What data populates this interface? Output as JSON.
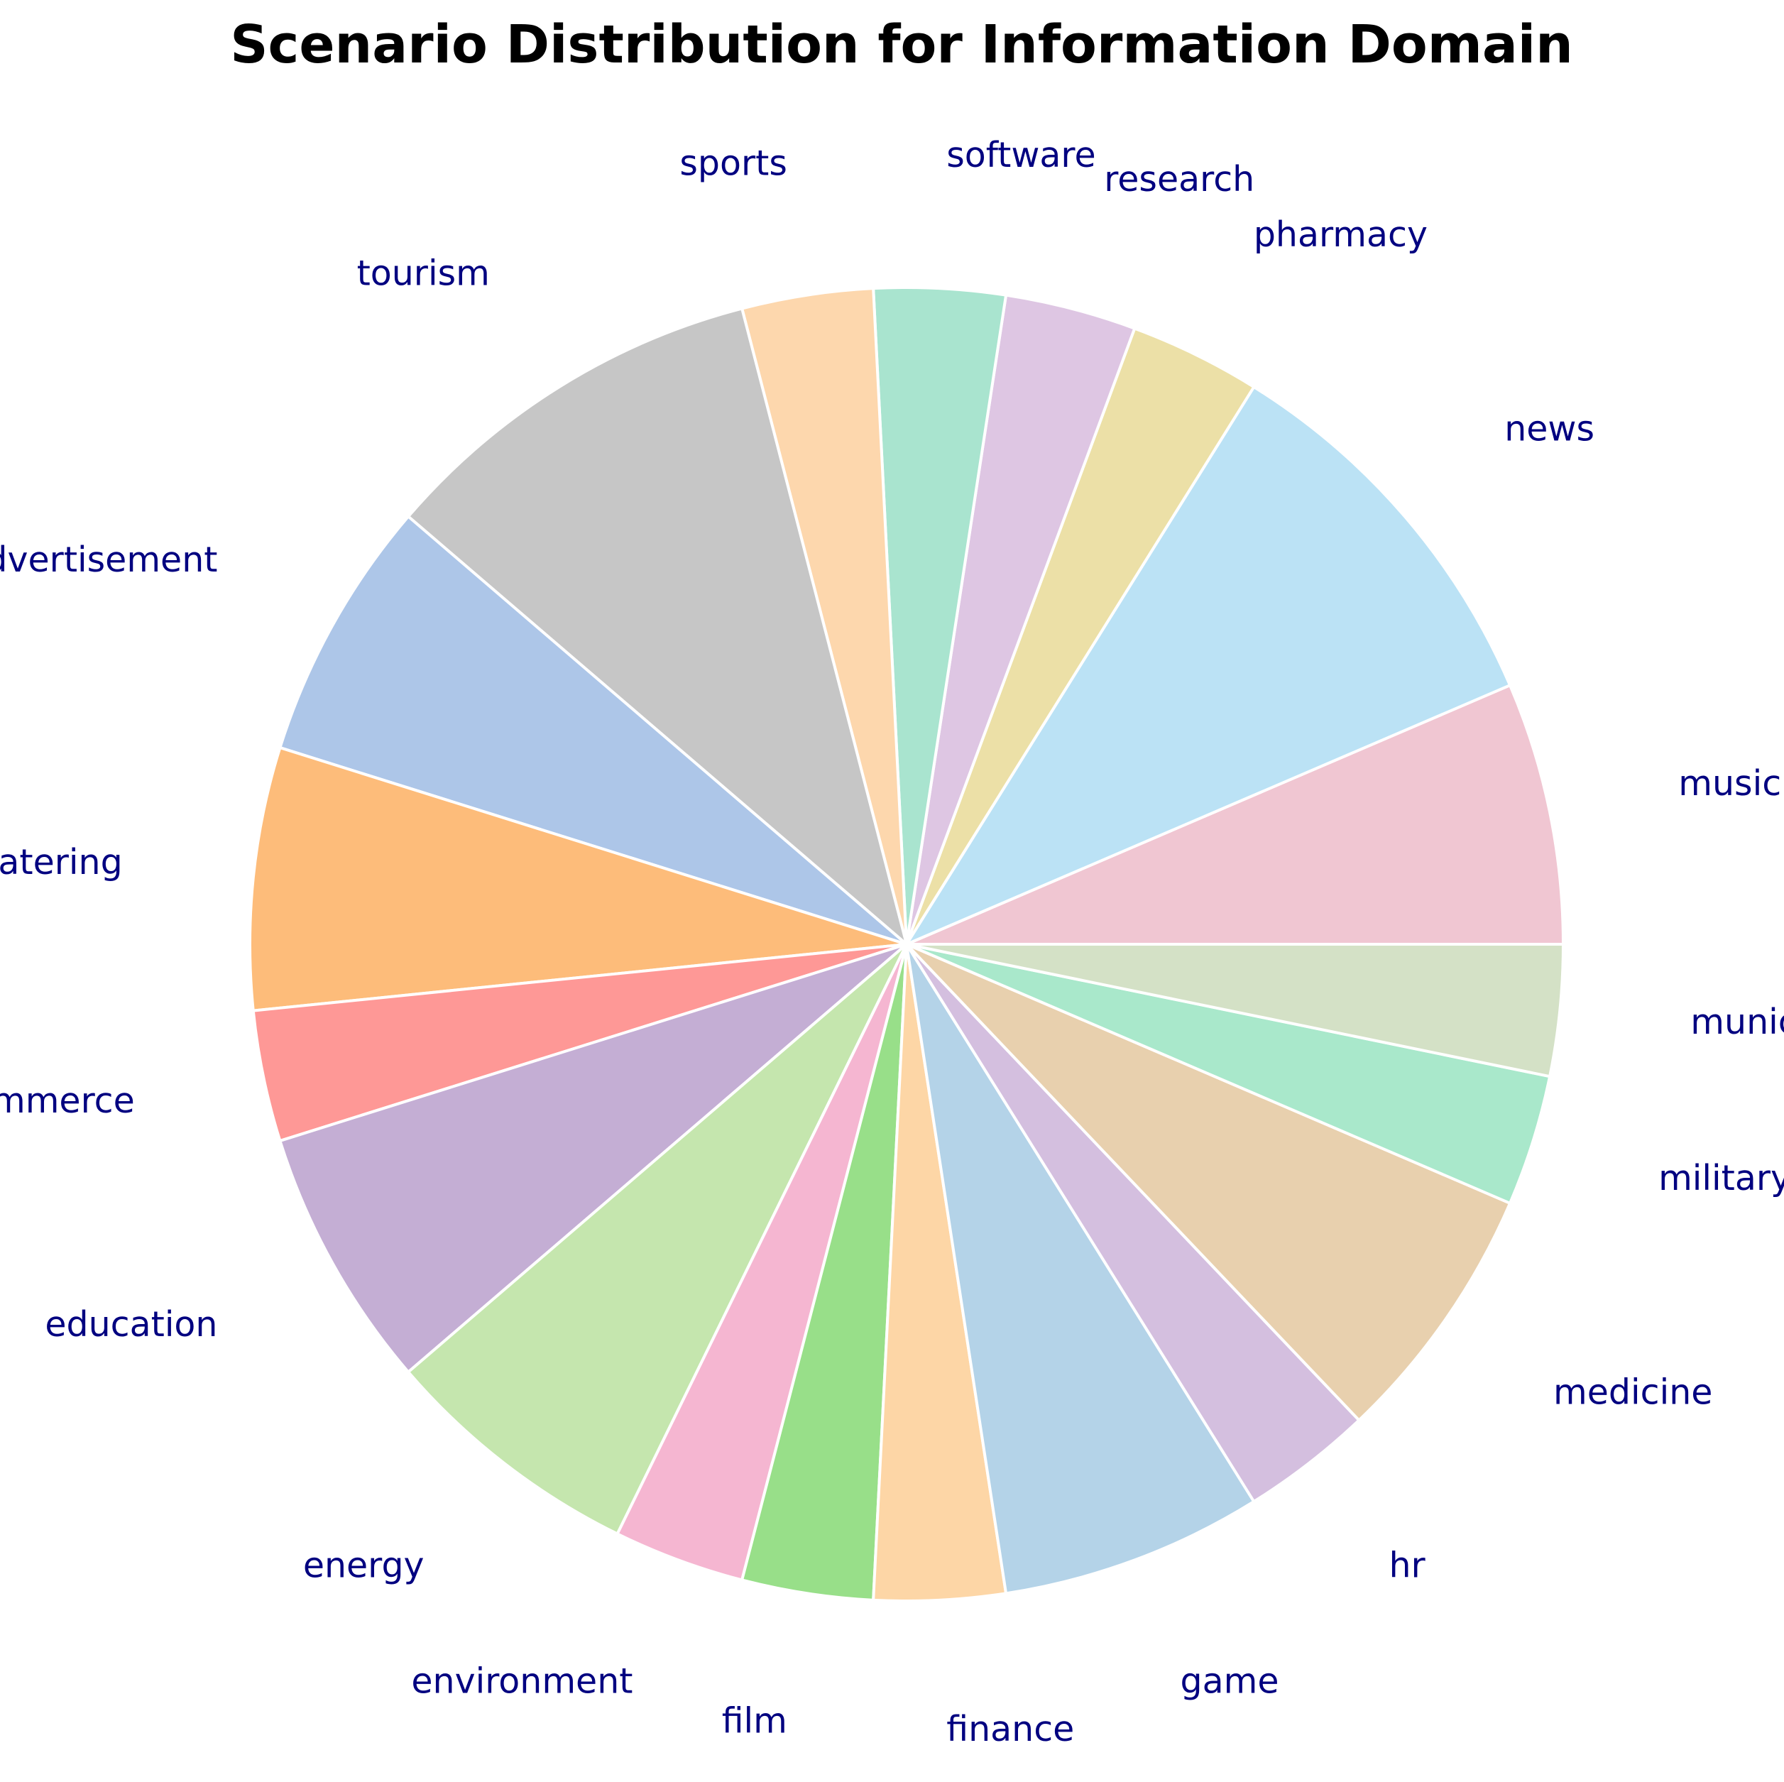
{
  "chart_data": {
    "type": "pie",
    "title": "Scenario Distribution for Information Domain",
    "start_angle_deg": 0,
    "direction": "counterclockwise",
    "slices": [
      {
        "label": "music",
        "value": 2,
        "color": "#f0c6d2"
      },
      {
        "label": "news",
        "value": 3,
        "color": "#bbe2f5"
      },
      {
        "label": "pharmacy",
        "value": 1,
        "color": "#ece0a7"
      },
      {
        "label": "research",
        "value": 1,
        "color": "#dec6e3"
      },
      {
        "label": "software",
        "value": 1,
        "color": "#a9e4cf"
      },
      {
        "label": "sports",
        "value": 1,
        "color": "#fdd7ad"
      },
      {
        "label": "tourism",
        "value": 3,
        "color": "#c6c6c6"
      },
      {
        "label": "advertisement",
        "value": 2,
        "color": "#adc6e8"
      },
      {
        "label": "catering",
        "value": 2,
        "color": "#fdbc7a"
      },
      {
        "label": "ecommerce",
        "value": 1,
        "color": "#fe9896"
      },
      {
        "label": "education",
        "value": 2,
        "color": "#c4aed4"
      },
      {
        "label": "energy",
        "value": 2,
        "color": "#c5e6ae"
      },
      {
        "label": "environment",
        "value": 1,
        "color": "#f5b6d1"
      },
      {
        "label": "film",
        "value": 1,
        "color": "#98df89"
      },
      {
        "label": "finance",
        "value": 1,
        "color": "#fdd6a6"
      },
      {
        "label": "game",
        "value": 2,
        "color": "#b4d3e8"
      },
      {
        "label": "hr",
        "value": 1,
        "color": "#d4bfdf"
      },
      {
        "label": "medicine",
        "value": 2,
        "color": "#e8d0ae"
      },
      {
        "label": "military",
        "value": 1,
        "color": "#a9e8cb"
      },
      {
        "label": "municipal",
        "value": 1,
        "color": "#d4e1c6"
      }
    ]
  }
}
